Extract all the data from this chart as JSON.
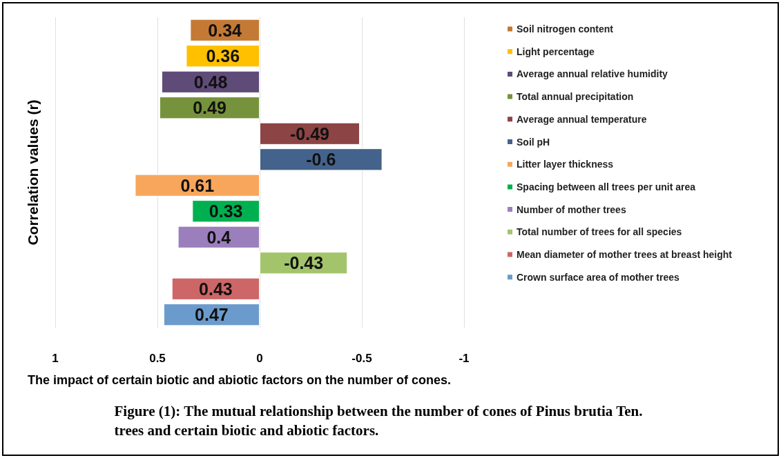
{
  "chart_data": {
    "type": "bar",
    "orientation": "horizontal",
    "ylabel": "Correlation values (r)",
    "xlabel": "The impact of certain biotic and abiotic factors on the number of cones.",
    "annotations": [
      "Figure (1): The mutual relationship between the number of cones of Pinus brutia Ten. trees and certain biotic and abiotic factors."
    ],
    "categories": [
      null,
      null,
      null,
      null,
      null,
      null,
      null,
      null,
      null,
      null,
      null,
      null
    ],
    "series": [
      {
        "name": "Soil nitrogen content",
        "color": "#c47a35",
        "values": [
          0.34,
          null,
          null,
          null,
          null,
          null,
          null,
          null,
          null,
          null,
          null,
          null
        ]
      },
      {
        "name": "Light percentage",
        "color": "#ffc000",
        "values": [
          null,
          0.36,
          null,
          null,
          null,
          null,
          null,
          null,
          null,
          null,
          null,
          null
        ]
      },
      {
        "name": "Average annual relative humidity",
        "color": "#5f4b78",
        "values": [
          null,
          null,
          0.48,
          null,
          null,
          null,
          null,
          null,
          null,
          null,
          null,
          null
        ]
      },
      {
        "name": "Total annual precipitation",
        "color": "#76923c",
        "values": [
          null,
          null,
          null,
          0.49,
          null,
          null,
          null,
          null,
          null,
          null,
          null,
          null
        ]
      },
      {
        "name": "Average annual temperature",
        "color": "#8c4444",
        "values": [
          null,
          null,
          null,
          null,
          -0.49,
          null,
          null,
          null,
          null,
          null,
          null,
          null
        ]
      },
      {
        "name": "Soil pH",
        "color": "#44638c",
        "values": [
          null,
          null,
          null,
          null,
          null,
          -0.6,
          null,
          null,
          null,
          null,
          null,
          null
        ]
      },
      {
        "name": "Litter layer thickness",
        "color": "#f8a65c",
        "values": [
          null,
          null,
          null,
          null,
          null,
          null,
          0.61,
          null,
          null,
          null,
          null,
          null
        ]
      },
      {
        "name": "Spacing between all trees per unit area",
        "color": "#00b050",
        "values": [
          null,
          null,
          null,
          null,
          null,
          null,
          null,
          0.33,
          null,
          null,
          null,
          null
        ]
      },
      {
        "name": "Number of mother trees",
        "color": "#9b7fbc",
        "values": [
          null,
          null,
          null,
          null,
          null,
          null,
          null,
          null,
          0.4,
          null,
          null,
          null
        ]
      },
      {
        "name": "Total number of trees for all species",
        "color": "#a4c46c",
        "values": [
          null,
          null,
          null,
          null,
          null,
          null,
          null,
          null,
          null,
          -0.43,
          null,
          null
        ]
      },
      {
        "name": "Mean diameter of mother trees at breast height",
        "color": "#cd6666",
        "values": [
          null,
          null,
          null,
          null,
          null,
          null,
          null,
          null,
          null,
          null,
          0.43,
          null
        ]
      },
      {
        "name": "Crown surface area of mother trees",
        "color": "#6b9bcc",
        "values": [
          null,
          null,
          null,
          null,
          null,
          null,
          null,
          null,
          null,
          null,
          null,
          0.47
        ]
      }
    ],
    "xlim": [
      1,
      -1
    ],
    "xticks": [
      1,
      0.5,
      0,
      -0.5,
      -1
    ],
    "grid": "x",
    "legend": "right",
    "data_labels": true
  }
}
